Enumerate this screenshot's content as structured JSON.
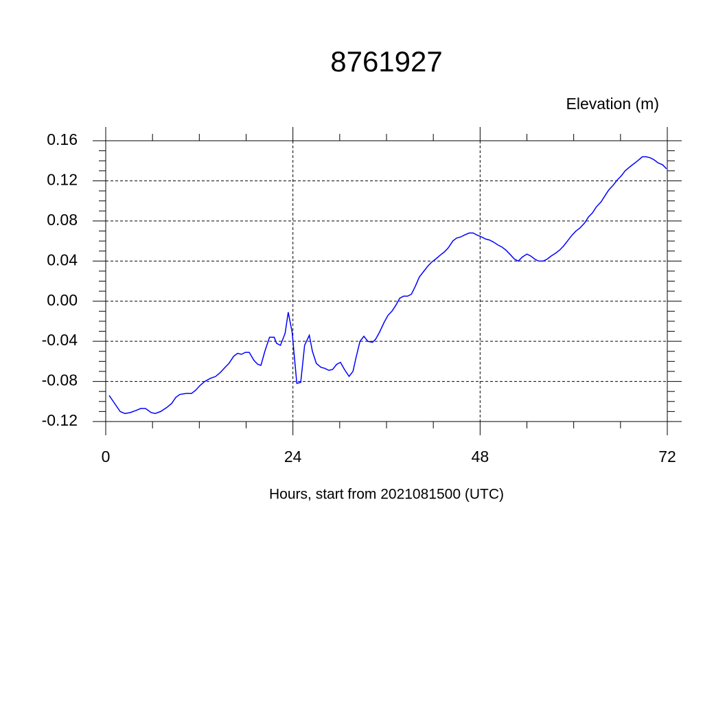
{
  "chart_data": {
    "type": "line",
    "title": "8761927",
    "y_label": "Elevation (m)",
    "x_label": "Hours, start from 2021081500 (UTC)",
    "x": [
      0.44,
      1.06,
      1.85,
      2.46,
      3.17,
      3.87,
      4.49,
      5.1,
      5.81,
      6.34,
      7.04,
      7.83,
      8.45,
      8.98,
      9.5,
      10.3,
      11.0,
      11.5,
      12.1,
      12.7,
      13.4,
      14.1,
      14.7,
      15.3,
      15.8,
      16.4,
      16.9,
      17.4,
      17.9,
      18.4,
      19.0,
      19.5,
      19.9,
      20.4,
      21.0,
      21.6,
      21.9,
      22.4,
      23.0,
      23.4,
      23.9,
      24.5,
      25.0,
      25.5,
      26.1,
      26.5,
      27.0,
      27.6,
      28.1,
      28.6,
      29.1,
      29.6,
      30.1,
      30.6,
      31.2,
      31.7,
      32.1,
      32.6,
      33.1,
      33.6,
      34.2,
      34.6,
      35.1,
      35.7,
      36.2,
      36.7,
      37.2,
      37.7,
      38.2,
      38.7,
      39.2,
      39.7,
      40.2,
      40.8,
      41.3,
      41.8,
      42.3,
      42.9,
      43.4,
      43.9,
      44.5,
      45.0,
      45.5,
      46.0,
      46.6,
      47.1,
      47.6,
      48.2,
      48.7,
      49.2,
      49.7,
      50.3,
      50.8,
      51.3,
      51.8,
      52.4,
      52.9,
      53.4,
      54.0,
      54.5,
      55.0,
      55.5,
      56.1,
      56.6,
      57.1,
      57.7,
      58.2,
      58.7,
      59.2,
      59.8,
      60.3,
      60.8,
      61.4,
      61.9,
      62.4,
      62.9,
      63.5,
      64.0,
      64.5,
      65.1,
      65.6,
      66.1,
      66.6,
      67.2,
      67.7,
      68.2,
      68.8,
      69.3,
      69.8,
      70.3,
      70.8,
      71.4,
      71.9
    ],
    "values": [
      -0.094,
      -0.101,
      -0.11,
      -0.112,
      -0.111,
      -0.109,
      -0.107,
      -0.107,
      -0.111,
      -0.112,
      -0.11,
      -0.106,
      -0.102,
      -0.096,
      -0.093,
      -0.092,
      -0.092,
      -0.089,
      -0.084,
      -0.08,
      -0.077,
      -0.075,
      -0.071,
      -0.066,
      -0.062,
      -0.055,
      -0.052,
      -0.053,
      -0.051,
      -0.051,
      -0.059,
      -0.063,
      -0.064,
      -0.05,
      -0.036,
      -0.036,
      -0.042,
      -0.044,
      -0.032,
      -0.011,
      -0.031,
      -0.082,
      -0.081,
      -0.044,
      -0.034,
      -0.05,
      -0.062,
      -0.066,
      -0.067,
      -0.069,
      -0.068,
      -0.063,
      -0.061,
      -0.068,
      -0.075,
      -0.07,
      -0.056,
      -0.04,
      -0.035,
      -0.04,
      -0.041,
      -0.038,
      -0.031,
      -0.021,
      -0.014,
      -0.01,
      -0.004,
      0.003,
      0.005,
      0.005,
      0.007,
      0.015,
      0.024,
      0.03,
      0.035,
      0.039,
      0.042,
      0.046,
      0.049,
      0.053,
      0.06,
      0.063,
      0.064,
      0.066,
      0.068,
      0.068,
      0.066,
      0.064,
      0.062,
      0.061,
      0.059,
      0.056,
      0.054,
      0.051,
      0.047,
      0.042,
      0.04,
      0.044,
      0.047,
      0.045,
      0.042,
      0.04,
      0.04,
      0.042,
      0.045,
      0.048,
      0.051,
      0.055,
      0.06,
      0.066,
      0.07,
      0.073,
      0.078,
      0.084,
      0.088,
      0.094,
      0.099,
      0.105,
      0.111,
      0.116,
      0.121,
      0.125,
      0.13,
      0.134,
      0.137,
      0.14,
      0.144,
      0.144,
      0.143,
      0.141,
      0.138,
      0.136,
      0.132
    ],
    "color": "#0000ff",
    "xlim": [
      0,
      72
    ],
    "xticks": [
      0,
      24,
      48,
      72
    ],
    "ylim": [
      -0.12,
      0.16
    ],
    "yticks": [
      -0.12,
      -0.08,
      -0.04,
      {
        "value": 0,
        "label": "0.00"
      },
      0.04,
      0.08,
      0.12,
      0.16
    ],
    "grid": true
  }
}
